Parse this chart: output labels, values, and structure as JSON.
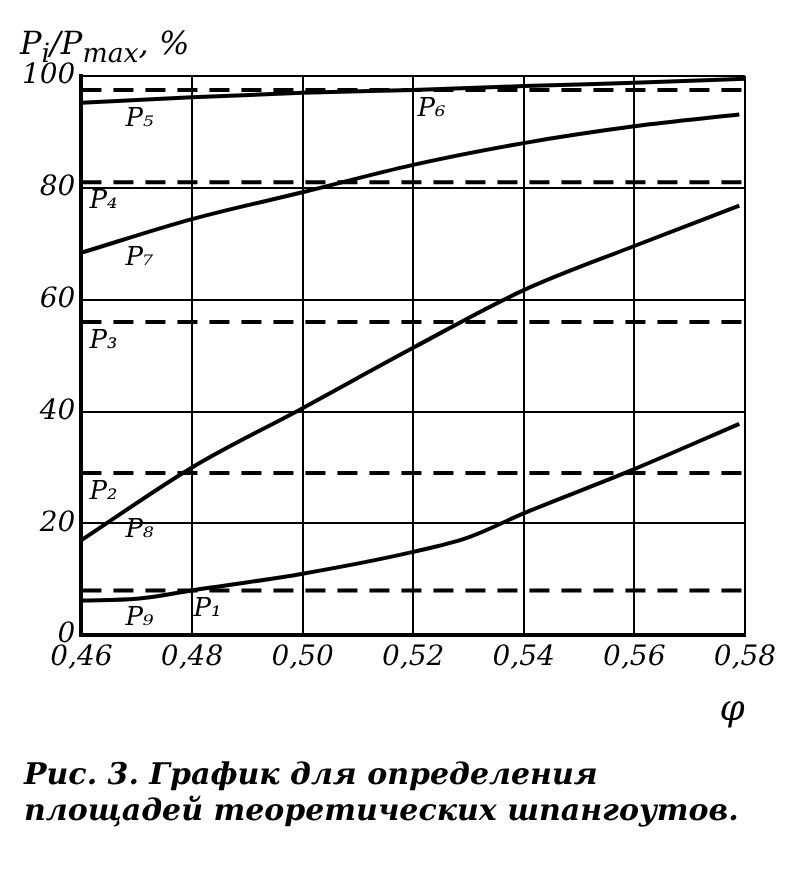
{
  "chart_data": {
    "type": "line",
    "ylabel": "P$_{i}$/P$_{max}$, %",
    "xlabel": "φ",
    "xlim": [
      0.46,
      0.58
    ],
    "xticks": [
      {
        "value": 0.46,
        "label": "0,46"
      },
      {
        "value": 0.48,
        "label": "0,48"
      },
      {
        "value": 0.5,
        "label": "0,50"
      },
      {
        "value": 0.52,
        "label": "0,52"
      },
      {
        "value": 0.54,
        "label": "0,54"
      },
      {
        "value": 0.56,
        "label": "0,56"
      },
      {
        "value": 0.58,
        "label": "0,58"
      }
    ],
    "ylim": [
      0,
      100
    ],
    "yticks": [
      0,
      20,
      40,
      60,
      80,
      100
    ],
    "grid": true,
    "legend": false,
    "marker": "none",
    "line_style": "solid",
    "series": [
      {
        "name": "P₅",
        "color": "#000000",
        "x": [
          0.46,
          0.48,
          0.5,
          0.52,
          0.54,
          0.56,
          0.58
        ],
        "values": [
          95.2,
          96.2,
          97,
          97.5,
          98.2,
          98.8,
          99.5
        ]
      },
      {
        "name": "P₇",
        "color": "#000000",
        "x": [
          0.46,
          0.48,
          0.5,
          0.52,
          0.54,
          0.56,
          0.579
        ],
        "values": [
          68.4,
          74.4,
          79.2,
          84.1,
          88,
          91,
          93.1
        ]
      },
      {
        "name": "P₈",
        "color": "#000000",
        "x": [
          0.46,
          0.48,
          0.5,
          0.52,
          0.54,
          0.56,
          0.579
        ],
        "values": [
          17,
          30,
          40.6,
          51.4,
          61.7,
          69.6,
          76.8
        ]
      },
      {
        "name": "P₉",
        "color": "#000000",
        "x": [
          0.46,
          0.47,
          0.48,
          0.5,
          0.52,
          0.53,
          0.54,
          0.56,
          0.579
        ],
        "values": [
          6.2,
          6.5,
          8,
          11,
          14.9,
          17.5,
          21.8,
          29.7,
          37.8
        ]
      }
    ],
    "ref_lines": [
      {
        "axis": "y",
        "value": 97.5,
        "label": "P₆",
        "line_style": "dashed",
        "color": "#000000"
      },
      {
        "axis": "y",
        "value": 81,
        "label": "P₄",
        "line_style": "dashed",
        "color": "#000000"
      },
      {
        "axis": "y",
        "value": 56,
        "label": "P₃",
        "line_style": "dashed",
        "color": "#000000"
      },
      {
        "axis": "y",
        "value": 29,
        "label": "P₂",
        "line_style": "dashed",
        "color": "#000000"
      },
      {
        "axis": "y",
        "value": 8,
        "label": "P₁",
        "line_style": "dashed",
        "color": "#000000"
      }
    ],
    "annotations": [
      "Рис. 3. График для определения площадей теоретических шпангоутов."
    ]
  }
}
